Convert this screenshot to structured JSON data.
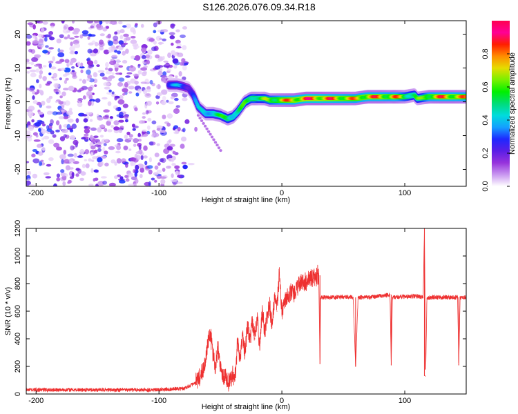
{
  "figure": {
    "title": "S126.2026.076.09.34.R18"
  },
  "chart_data": [
    {
      "type": "heatmap",
      "name": "spectrogram",
      "xlabel": "Height of straight line (km)",
      "ylabel": "Frequency (Hz)",
      "xlim": [
        -208,
        150
      ],
      "ylim": [
        -25,
        24
      ],
      "xticks": [
        -200,
        -100,
        0,
        100
      ],
      "xtick_labels": [
        "-200",
        "-100",
        "0",
        "100"
      ],
      "yticks": [
        20,
        10,
        0,
        -10,
        -20
      ],
      "ytick_labels": [
        "20",
        "10",
        "0",
        "-10",
        "-20"
      ],
      "noise_region_km": [
        -208,
        -78
      ],
      "ridge": {
        "x": [
          -92,
          -85,
          -80,
          -76,
          -72,
          -68,
          -62,
          -56,
          -50,
          -44,
          -40,
          -36,
          -30,
          -25,
          -22,
          -18,
          -14,
          -10,
          -5,
          0,
          10,
          20,
          30,
          45,
          60,
          70,
          80,
          88,
          92,
          100,
          108,
          110,
          114,
          120,
          130,
          140,
          150
        ],
        "y": [
          5,
          5,
          4.5,
          4,
          2,
          -1.5,
          -3.5,
          -3.5,
          -4,
          -5,
          -4.5,
          -3,
          0,
          1,
          1,
          1,
          1,
          0.5,
          0.5,
          0.5,
          0.5,
          1,
          1,
          1,
          1,
          1.5,
          1.5,
          1.5,
          1.5,
          1.5,
          2,
          1,
          1.2,
          1.5,
          1.5,
          1.5,
          1.5
        ],
        "amp": [
          0.35,
          0.4,
          0.35,
          0.3,
          0.35,
          0.4,
          0.5,
          0.55,
          0.55,
          0.65,
          0.6,
          0.55,
          0.6,
          0.65,
          0.7,
          0.6,
          0.65,
          0.7,
          0.75,
          0.8,
          0.85,
          0.9,
          0.9,
          0.85,
          0.8,
          0.85,
          0.85,
          0.8,
          0.85,
          0.7,
          0.6,
          0.6,
          0.65,
          0.8,
          0.85,
          0.85,
          0.8
        ]
      },
      "colorbar": {
        "label": "Normalized spectral amplitude",
        "range": [
          0.0,
          1.0
        ],
        "ticks": [
          0.0,
          0.2,
          0.4,
          0.6,
          0.8
        ],
        "tick_labels": [
          "0.0",
          "0.2",
          "0.4",
          "0.6",
          "0.8"
        ],
        "colors": [
          "#ffffff",
          "#c896f0",
          "#9632dc",
          "#5a1ee6",
          "#1e28ff",
          "#14a0ff",
          "#00dcdc",
          "#00dc78",
          "#00f000",
          "#78f000",
          "#e6dc00",
          "#ff8c00",
          "#ff1e00",
          "#ff0096",
          "#ff0050"
        ]
      }
    },
    {
      "type": "line",
      "name": "snr",
      "xlabel": "Height of straight line (km)",
      "ylabel": "SNR (10 * v/v)",
      "xlim": [
        -208,
        150
      ],
      "ylim": [
        0,
        1200
      ],
      "xticks": [
        -200,
        -100,
        0,
        100
      ],
      "xtick_labels": [
        "-200",
        "-100",
        "0",
        "100"
      ],
      "yticks": [
        0,
        200,
        400,
        600,
        800,
        1000,
        1200
      ],
      "ytick_labels": [
        "0",
        "200",
        "400",
        "600",
        "800",
        "1000",
        "1200"
      ],
      "color": "#ee3030",
      "x": [
        -208,
        -150,
        -100,
        -80,
        -70,
        -65,
        -62,
        -60,
        -58,
        -56,
        -54,
        -52,
        -50,
        -48,
        -46,
        -44,
        -42,
        -40,
        -38,
        -36,
        -34,
        -32,
        -30,
        -28,
        -26,
        -24,
        -22,
        -20,
        -18,
        -16,
        -14,
        -12,
        -10,
        -8,
        -6,
        -4,
        -2,
        0,
        2,
        4,
        6,
        8,
        10,
        14,
        18,
        22,
        26,
        30,
        31,
        31.5,
        32,
        40,
        50,
        58,
        60,
        62,
        70,
        80,
        88,
        89,
        90,
        100,
        110,
        115,
        116,
        117,
        118,
        120,
        130,
        140,
        143,
        144,
        145,
        150
      ],
      "y": [
        30,
        30,
        30,
        40,
        80,
        150,
        250,
        380,
        420,
        300,
        180,
        350,
        200,
        120,
        150,
        80,
        100,
        150,
        120,
        380,
        250,
        420,
        300,
        500,
        380,
        520,
        400,
        550,
        350,
        600,
        450,
        550,
        650,
        480,
        700,
        600,
        880,
        580,
        650,
        700,
        720,
        740,
        740,
        790,
        800,
        820,
        840,
        860,
        220,
        690,
        700,
        700,
        705,
        700,
        200,
        700,
        700,
        710,
        720,
        210,
        700,
        705,
        710,
        700,
        1200,
        130,
        690,
        700,
        700,
        700,
        700,
        210,
        700,
        700
      ]
    }
  ]
}
